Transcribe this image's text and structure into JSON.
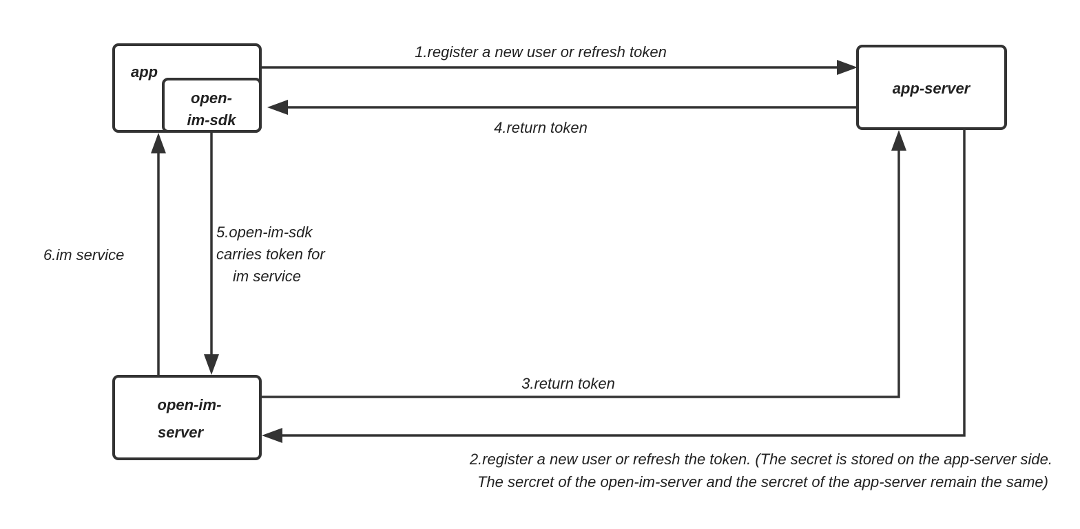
{
  "nodes": {
    "app": "app",
    "sdk": [
      "open-",
      "im-sdk"
    ],
    "app_server": "app-server",
    "im_server": [
      "open-im-",
      "server"
    ]
  },
  "edges": {
    "e1": "1.register a new user or refresh token",
    "e2": [
      "2.register a new user or refresh the token. (The secret is stored on the app-server side.",
      "The sercret of the open-im-server and the sercret of the app-server remain the same)"
    ],
    "e3": "3.return token",
    "e4": "4.return token",
    "e5": [
      "5.open-im-sdk",
      "carries token for",
      "im service"
    ],
    "e6": "6.im service"
  },
  "colors": {
    "stroke": "#333333",
    "text": "#222222"
  }
}
